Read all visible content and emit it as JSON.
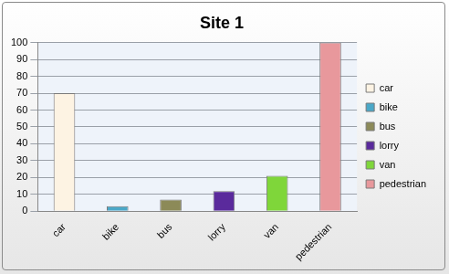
{
  "chart_data": {
    "type": "bar",
    "title": "Site 1",
    "categories": [
      "car",
      "bike",
      "bus",
      "lorry",
      "van",
      "pedestrian"
    ],
    "values": [
      70,
      3,
      7,
      12,
      21,
      100
    ],
    "colors": [
      "#fdf3e3",
      "#4aa8c8",
      "#8c8a58",
      "#5a2a9c",
      "#7fd63a",
      "#e8989c"
    ],
    "ylim": [
      0,
      100
    ],
    "yticks": [
      0,
      10,
      20,
      30,
      40,
      50,
      60,
      70,
      80,
      90,
      100
    ],
    "grid": true,
    "legend": "right"
  }
}
